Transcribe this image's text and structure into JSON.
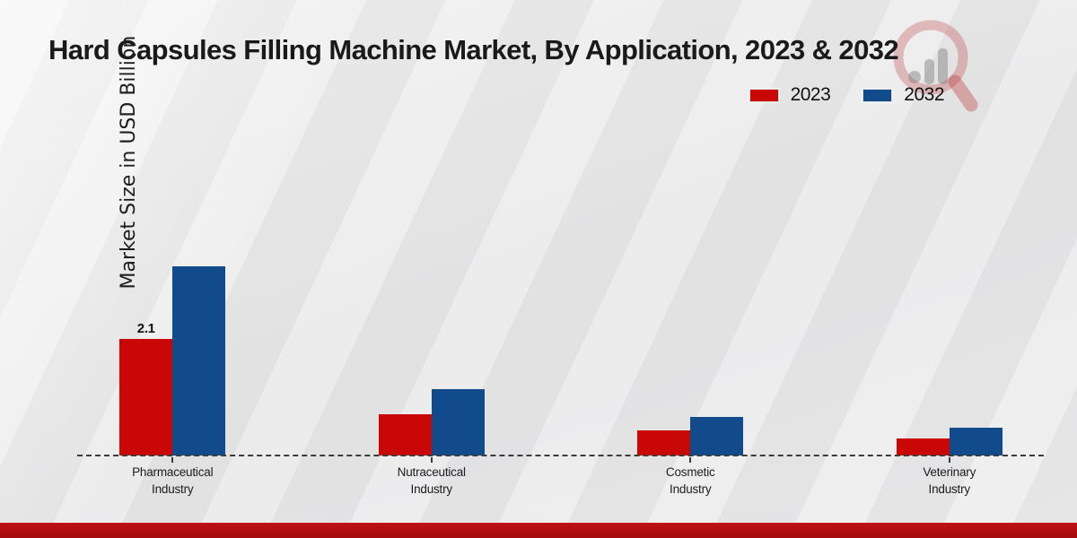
{
  "title": "Hard Capsules Filling Machine Market, By Application, 2023 & 2032",
  "y_axis_label": "Market Size in USD Billion",
  "legend": {
    "position": "top-right",
    "entries": [
      "2023",
      "2032"
    ]
  },
  "colors": {
    "series_2023": "#c90707",
    "series_2032": "#114b8c",
    "footer_bar": "#b20d10",
    "baseline": "#3b3b3b",
    "background": "#e9e9ea"
  },
  "chart_data": {
    "type": "bar",
    "categories": [
      "Pharmaceutical Industry",
      "Nutraceutical Industry",
      "Cosmetic Industry",
      "Veterinary Industry"
    ],
    "series": [
      {
        "name": "2023",
        "color": "#c90707",
        "values": [
          2.1,
          0.75,
          0.45,
          0.3
        ]
      },
      {
        "name": "2032",
        "color": "#114b8c",
        "values": [
          3.4,
          1.2,
          0.7,
          0.5
        ]
      }
    ],
    "data_labels": [
      {
        "series": "2023",
        "category_index": 0,
        "text": "2.1"
      }
    ],
    "title": "Hard Capsules Filling Machine Market, By Application, 2023 & 2032",
    "xlabel": "",
    "ylabel": "Market Size in USD Billion",
    "ylim": [
      0,
      4
    ],
    "grid": false,
    "legend_position": "top-right",
    "y_ticks_visible": false,
    "baseline_style": "dashed"
  }
}
